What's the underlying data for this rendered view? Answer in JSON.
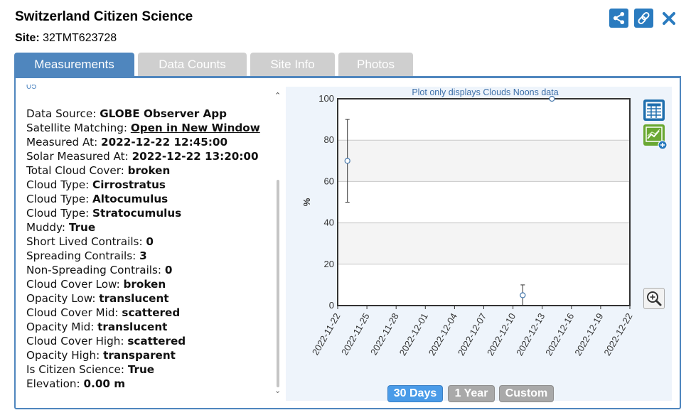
{
  "header": {
    "title": "Switzerland Citizen Science",
    "site_label": "Site:",
    "site_value": "32TMT623728"
  },
  "icons": {
    "share": "share-icon",
    "link": "link-icon",
    "close": "close-icon",
    "table": "table-icon",
    "add_chart": "add-chart-icon",
    "zoom": "zoom-in-icon"
  },
  "colors": {
    "accent": "#4f86be",
    "tab_inactive": "#cfcfcf",
    "range_active": "#4a9be8"
  },
  "tabs": [
    {
      "label": "Measurements",
      "active": true
    },
    {
      "label": "Data Counts",
      "active": false
    },
    {
      "label": "Site Info",
      "active": false
    },
    {
      "label": "Photos",
      "active": false
    }
  ],
  "list_cut_text": "05",
  "measurements": [
    {
      "label": "Data Source:",
      "value": "GLOBE Observer App"
    },
    {
      "label": "Satellite Matching:",
      "value": "Open in New Window",
      "link": true
    },
    {
      "label": "Measured At:",
      "value": "2022-12-22 12:45:00"
    },
    {
      "label": "Solar Measured At:",
      "value": "2022-12-22 13:20:00"
    },
    {
      "label": "Total Cloud Cover:",
      "value": "broken"
    },
    {
      "label": "Cloud Type:",
      "value": "Cirrostratus"
    },
    {
      "label": "Cloud Type:",
      "value": "Altocumulus"
    },
    {
      "label": "Cloud Type:",
      "value": "Stratocumulus"
    },
    {
      "label": "Muddy:",
      "value": "True"
    },
    {
      "label": "Short Lived Contrails:",
      "value": "0"
    },
    {
      "label": "Spreading Contrails:",
      "value": "3"
    },
    {
      "label": "Non-Spreading Contrails:",
      "value": "0"
    },
    {
      "label": "Cloud Cover Low:",
      "value": "broken"
    },
    {
      "label": "Opacity Low:",
      "value": "translucent"
    },
    {
      "label": "Cloud Cover Mid:",
      "value": "scattered"
    },
    {
      "label": "Opacity Mid:",
      "value": "translucent"
    },
    {
      "label": "Cloud Cover High:",
      "value": "scattered"
    },
    {
      "label": "Opacity High:",
      "value": "transparent"
    },
    {
      "label": "Is Citizen Science:",
      "value": "True"
    },
    {
      "label": "Elevation:",
      "value": "0.00 m"
    }
  ],
  "range_buttons": [
    {
      "label": "30 Days",
      "active": true
    },
    {
      "label": "1 Year",
      "active": false
    },
    {
      "label": "Custom",
      "active": false
    }
  ],
  "chart_data": {
    "type": "scatter",
    "title": "Plot only displays Clouds Noons data",
    "ylabel": "%",
    "xlabel": "",
    "ylim": [
      0,
      100
    ],
    "xlim": [
      "2022-11-22",
      "2022-12-22"
    ],
    "yticks": [
      0,
      20,
      40,
      60,
      80,
      100
    ],
    "xticks": [
      "2022-11-22",
      "2022-11-25",
      "2022-11-28",
      "2022-12-01",
      "2022-12-04",
      "2022-12-07",
      "2022-12-10",
      "2022-12-13",
      "2022-12-16",
      "2022-12-19",
      "2022-12-22"
    ],
    "grid": "horizontal bands",
    "points": [
      {
        "x": "2022-11-23",
        "y": 70,
        "low": 50,
        "high": 90
      },
      {
        "x": "2022-12-11",
        "y": 5,
        "low": 0,
        "high": 10
      },
      {
        "x": "2022-12-14",
        "y": 100
      }
    ]
  }
}
